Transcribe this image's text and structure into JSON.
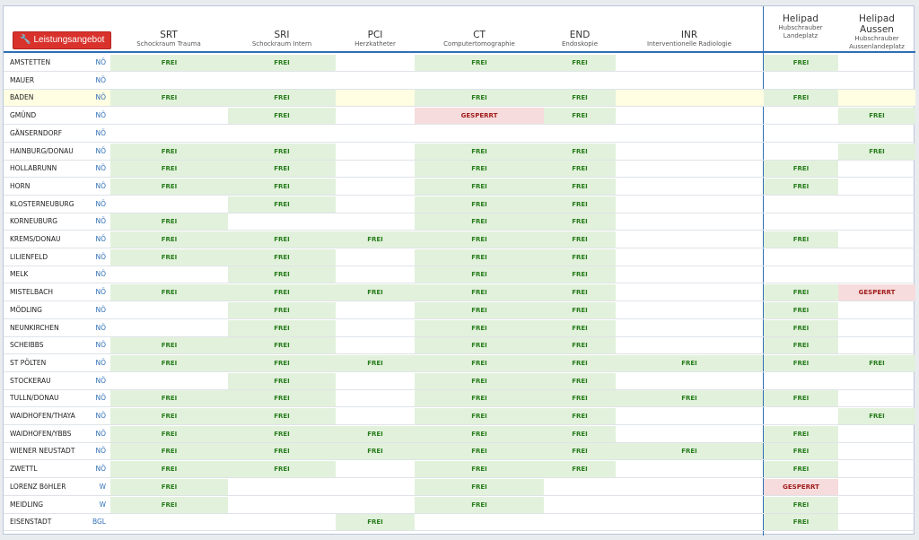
{
  "button": {
    "label": "Leistungsangebot",
    "icon": "wrench-icon"
  },
  "columns": [
    {
      "code": "SRT",
      "sub": "Schockraum Trauma"
    },
    {
      "code": "SRI",
      "sub": "Schockraum Intern"
    },
    {
      "code": "PCI",
      "sub": "Herzkatheter"
    },
    {
      "code": "CT",
      "sub": "Computertomographie"
    },
    {
      "code": "END",
      "sub": "Endoskopie"
    },
    {
      "code": "INR",
      "sub": "Interventionelle Radiologie"
    },
    {
      "code": "Helipad",
      "sub": "Hubschrauber Landeplatz"
    },
    {
      "code": "Helipad Aussen",
      "sub": "Hubschrauber Aussenlandeplatz"
    }
  ],
  "status_labels": {
    "F": "FREI",
    "G": "GESPERRT"
  },
  "colors": {
    "frei_bg": "#e2f1dc",
    "frei_text": "#277c1c",
    "gesperrt_bg": "#f6dcdc",
    "gesperrt_text": "#a21d1d",
    "accent": "#2f6fb6",
    "button": "#d9322d"
  },
  "rows": [
    {
      "name": "AMSTETTEN",
      "region": "NÖ",
      "status": [
        "F",
        "F",
        "",
        "F",
        "F",
        "",
        "F",
        ""
      ]
    },
    {
      "name": "MAUER",
      "region": "NÖ",
      "status": [
        "",
        "",
        "",
        "",
        "",
        "",
        "",
        ""
      ]
    },
    {
      "name": "BADEN",
      "region": "NÖ",
      "highlight": true,
      "status": [
        "F",
        "F",
        "",
        "F",
        "F",
        "",
        "F",
        ""
      ]
    },
    {
      "name": "GMÜND",
      "region": "NÖ",
      "status": [
        "",
        "F",
        "",
        "G",
        "F",
        "",
        "",
        "F"
      ]
    },
    {
      "name": "GÄNSERNDORF",
      "region": "NÖ",
      "status": [
        "",
        "",
        "",
        "",
        "",
        "",
        "",
        ""
      ]
    },
    {
      "name": "HAINBURG/DONAU",
      "region": "NÖ",
      "status": [
        "F",
        "F",
        "",
        "F",
        "F",
        "",
        "",
        "F"
      ]
    },
    {
      "name": "HOLLABRUNN",
      "region": "NÖ",
      "status": [
        "F",
        "F",
        "",
        "F",
        "F",
        "",
        "F",
        ""
      ]
    },
    {
      "name": "HORN",
      "region": "NÖ",
      "status": [
        "F",
        "F",
        "",
        "F",
        "F",
        "",
        "F",
        ""
      ]
    },
    {
      "name": "KLOSTERNEUBURG",
      "region": "NÖ",
      "status": [
        "",
        "F",
        "",
        "F",
        "F",
        "",
        "",
        ""
      ]
    },
    {
      "name": "KORNEUBURG",
      "region": "NÖ",
      "status": [
        "F",
        "",
        "",
        "F",
        "F",
        "",
        "",
        ""
      ]
    },
    {
      "name": "KREMS/DONAU",
      "region": "NÖ",
      "status": [
        "F",
        "F",
        "F",
        "F",
        "F",
        "",
        "F",
        ""
      ]
    },
    {
      "name": "LILIENFELD",
      "region": "NÖ",
      "status": [
        "F",
        "F",
        "",
        "F",
        "F",
        "",
        "",
        ""
      ]
    },
    {
      "name": "MELK",
      "region": "NÖ",
      "status": [
        "",
        "F",
        "",
        "F",
        "F",
        "",
        "",
        ""
      ]
    },
    {
      "name": "MISTELBACH",
      "region": "NÖ",
      "status": [
        "F",
        "F",
        "F",
        "F",
        "F",
        "",
        "F",
        "G"
      ]
    },
    {
      "name": "MÖDLING",
      "region": "NÖ",
      "status": [
        "",
        "F",
        "",
        "F",
        "F",
        "",
        "F",
        ""
      ]
    },
    {
      "name": "NEUNKIRCHEN",
      "region": "NÖ",
      "status": [
        "",
        "F",
        "",
        "F",
        "F",
        "",
        "F",
        ""
      ]
    },
    {
      "name": "SCHEIBBS",
      "region": "NÖ",
      "status": [
        "F",
        "F",
        "",
        "F",
        "F",
        "",
        "F",
        ""
      ]
    },
    {
      "name": "ST PÖLTEN",
      "region": "NÖ",
      "status": [
        "F",
        "F",
        "F",
        "F",
        "F",
        "F",
        "F",
        "F"
      ]
    },
    {
      "name": "STOCKERAU",
      "region": "NÖ",
      "status": [
        "",
        "F",
        "",
        "F",
        "F",
        "",
        "",
        ""
      ]
    },
    {
      "name": "TULLN/DONAU",
      "region": "NÖ",
      "status": [
        "F",
        "F",
        "",
        "F",
        "F",
        "F",
        "F",
        ""
      ]
    },
    {
      "name": "WAIDHOFEN/THAYA",
      "region": "NÖ",
      "status": [
        "F",
        "F",
        "",
        "F",
        "F",
        "",
        "",
        "F"
      ]
    },
    {
      "name": "WAIDHOFEN/YBBS",
      "region": "NÖ",
      "status": [
        "F",
        "F",
        "F",
        "F",
        "F",
        "",
        "F",
        ""
      ]
    },
    {
      "name": "WIENER NEUSTADT",
      "region": "NÖ",
      "status": [
        "F",
        "F",
        "F",
        "F",
        "F",
        "F",
        "F",
        ""
      ]
    },
    {
      "name": "ZWETTL",
      "region": "NÖ",
      "status": [
        "F",
        "F",
        "",
        "F",
        "F",
        "",
        "F",
        ""
      ]
    },
    {
      "name": "LORENZ BöHLER",
      "region": "W",
      "status": [
        "F",
        "",
        "",
        "F",
        "",
        "",
        "G",
        ""
      ]
    },
    {
      "name": "MEIDLING",
      "region": "W",
      "status": [
        "F",
        "",
        "",
        "F",
        "",
        "",
        "F",
        ""
      ]
    },
    {
      "name": "EISENSTADT",
      "region": "BGL",
      "status": [
        "",
        "",
        "F",
        "",
        "",
        "",
        "F",
        ""
      ]
    }
  ]
}
